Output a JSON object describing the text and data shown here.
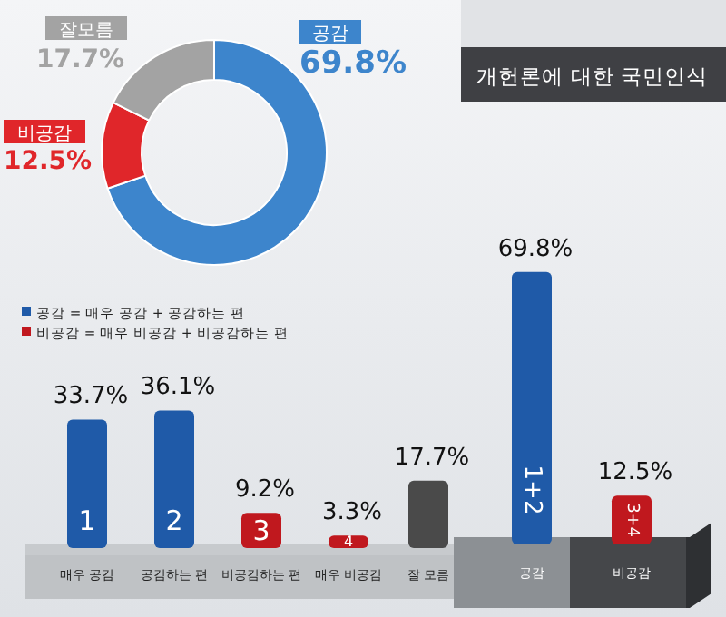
{
  "chart_data": [
    {
      "type": "donut",
      "categories": [
        "공감",
        "비공감",
        "잘모름"
      ],
      "values": [
        69.8,
        12.5,
        17.7
      ],
      "colors": [
        "#3d85cc",
        "#e0262a",
        "#a3a3a3"
      ],
      "value_labels": [
        "69.8%",
        "12.5%",
        "17.7%"
      ],
      "annotations": [
        "공감 = 매우 공감 + 공감하는 편",
        "비공감 = 매우 비공감 + 비공감하는 편"
      ]
    },
    {
      "type": "bar",
      "categories": [
        "매우 공감",
        "공감하는 편",
        "비공감하는 편",
        "매우 비공감",
        "잘 모름"
      ],
      "values": [
        33.7,
        36.1,
        9.2,
        3.3,
        17.7
      ],
      "colors": [
        "#1f5aa8",
        "#1f5aa8",
        "#c0181e",
        "#c0181e",
        "#4a4a4a"
      ],
      "value_labels": [
        "33.7%",
        "36.1%",
        "9.2%",
        "3.3%",
        "17.7%"
      ],
      "annotations": [
        "1",
        "2",
        "3",
        "4"
      ]
    },
    {
      "type": "bar",
      "title": "개헌론에 대한 국민인식",
      "categories": [
        "공감",
        "비공감"
      ],
      "values": [
        69.8,
        12.5
      ],
      "colors": [
        "#1f5aa8",
        "#c0181e"
      ],
      "value_labels": [
        "69.8%",
        "12.5%"
      ],
      "annotations": [
        "1+2",
        "3+4"
      ]
    }
  ]
}
